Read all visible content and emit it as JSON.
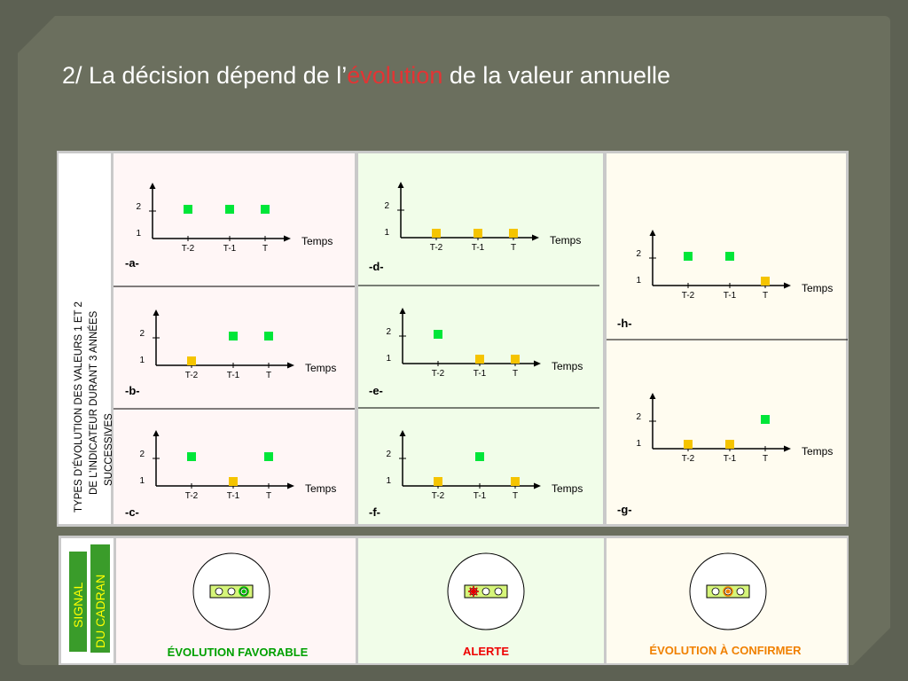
{
  "title": {
    "prefix": "2/ La décision dépend de l’",
    "highlight": "évolution",
    "suffix": " de la valeur annuelle"
  },
  "side_label": {
    "line1": "TYPES  D’ÉVOLUTION DES VALEURS  1 ET 2",
    "line2": "DE L’INDICATEUR DURANT 3 ANNÉES",
    "line3": "SUCCESSIVES"
  },
  "signal_label": {
    "line1": "SIGNAL",
    "line2": "DU  CADRAN"
  },
  "axis": {
    "time_label": "Temps",
    "ticks": [
      "T-2",
      "T-1",
      "T"
    ],
    "levels": [
      "1",
      "2"
    ]
  },
  "colors": {
    "green": "#00e639",
    "yellow": "#f5c400",
    "pink_bg": "#fff6f6",
    "green_bg": "#f1fde9",
    "cream_bg": "#fffcf0"
  },
  "charts": [
    {
      "id": "a",
      "label": "-a-",
      "points": [
        {
          "t": "T-2",
          "level": 2,
          "color": "green"
        },
        {
          "t": "T-1",
          "level": 2,
          "color": "green"
        },
        {
          "t": "T",
          "level": 2,
          "color": "green"
        }
      ]
    },
    {
      "id": "b",
      "label": "-b-",
      "points": [
        {
          "t": "T-2",
          "level": 1,
          "color": "yellow"
        },
        {
          "t": "T-1",
          "level": 2,
          "color": "green"
        },
        {
          "t": "T",
          "level": 2,
          "color": "green"
        }
      ]
    },
    {
      "id": "c",
      "label": "-c-",
      "points": [
        {
          "t": "T-2",
          "level": 2,
          "color": "green"
        },
        {
          "t": "T-1",
          "level": 1,
          "color": "yellow"
        },
        {
          "t": "T",
          "level": 2,
          "color": "green"
        }
      ]
    },
    {
      "id": "d",
      "label": "-d-",
      "points": [
        {
          "t": "T-2",
          "level": 1,
          "color": "yellow"
        },
        {
          "t": "T-1",
          "level": 1,
          "color": "yellow"
        },
        {
          "t": "T",
          "level": 1,
          "color": "yellow"
        }
      ]
    },
    {
      "id": "e",
      "label": "-e-",
      "points": [
        {
          "t": "T-2",
          "level": 2,
          "color": "green"
        },
        {
          "t": "T-1",
          "level": 1,
          "color": "yellow"
        },
        {
          "t": "T",
          "level": 1,
          "color": "yellow"
        }
      ]
    },
    {
      "id": "f",
      "label": "-f-",
      "points": [
        {
          "t": "T-2",
          "level": 1,
          "color": "yellow"
        },
        {
          "t": "T-1",
          "level": 2,
          "color": "green"
        },
        {
          "t": "T",
          "level": 1,
          "color": "yellow"
        }
      ]
    },
    {
      "id": "h",
      "label": "-h-",
      "points": [
        {
          "t": "T-2",
          "level": 2,
          "color": "green"
        },
        {
          "t": "T-1",
          "level": 2,
          "color": "green"
        },
        {
          "t": "T",
          "level": 1,
          "color": "yellow"
        }
      ]
    },
    {
      "id": "g",
      "label": "-g-",
      "points": [
        {
          "t": "T-2",
          "level": 1,
          "color": "yellow"
        },
        {
          "t": "T-1",
          "level": 1,
          "color": "yellow"
        },
        {
          "t": "T",
          "level": 2,
          "color": "green"
        }
      ]
    }
  ],
  "signals": [
    {
      "id": "favorable",
      "caption": "ÉVOLUTION FAVORABLE",
      "caption_color": "#00a000",
      "lit": "right",
      "lit_color": "#00c000"
    },
    {
      "id": "alerte",
      "caption": "ALERTE",
      "caption_color": "#ee0000",
      "lit": "left",
      "lit_color": "#e00000"
    },
    {
      "id": "confirmer",
      "caption": "ÉVOLUTION  À  CONFIRMER",
      "caption_color": "#f08000",
      "lit": "middle",
      "lit_color": "#f08000"
    }
  ]
}
